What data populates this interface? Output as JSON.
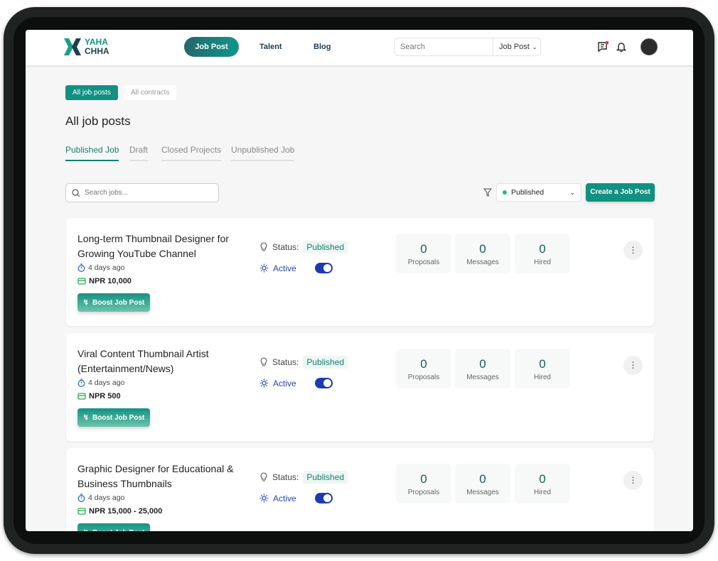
{
  "header": {
    "logo_top": "YAHA",
    "logo_bottom": "CHHA",
    "nav": [
      {
        "label": "Job Post",
        "active": true
      },
      {
        "label": "Talent"
      },
      {
        "label": "Blog"
      }
    ],
    "search_placeholder": "Search",
    "search_scope": "Job Post",
    "notification_dot_color": "#e53935"
  },
  "top_tabs": [
    "All job posts",
    "All contracts"
  ],
  "page_title": "All job posts",
  "sub_tabs": [
    "Published Job",
    "Draft",
    "Closed Projects",
    "Unpublished Job"
  ],
  "toolbar": {
    "search_placeholder": "Search jobs...",
    "filter_value": "Published",
    "create_label": "Create a Job Post"
  },
  "labels": {
    "status": "Status:",
    "active": "Active",
    "boost": "Boost Job Post",
    "proposals": "Proposals",
    "messages": "Messages",
    "hired": "Hired"
  },
  "jobs": [
    {
      "title": "Long-term Thumbnail Designer for Growing YouTube Channel",
      "posted": "4 days ago",
      "budget": "NPR 10,000",
      "status": "Published",
      "active": true,
      "proposals": "0",
      "messages": "0",
      "hired": "0"
    },
    {
      "title": "Viral Content Thumbnail Artist (Entertainment/News)",
      "posted": "4 days ago",
      "budget": "NPR 500",
      "status": "Published",
      "active": true,
      "proposals": "0",
      "messages": "0",
      "hired": "0"
    },
    {
      "title": "Graphic Designer for Educational & Business Thumbnails",
      "posted": "4 days ago",
      "budget": "NPR 15,000 - 25,000",
      "status": "Published",
      "active": true,
      "proposals": "0",
      "messages": "0",
      "hired": "0"
    }
  ],
  "colors": {
    "accent": "#129082",
    "toggle": "#1c3bb0"
  }
}
